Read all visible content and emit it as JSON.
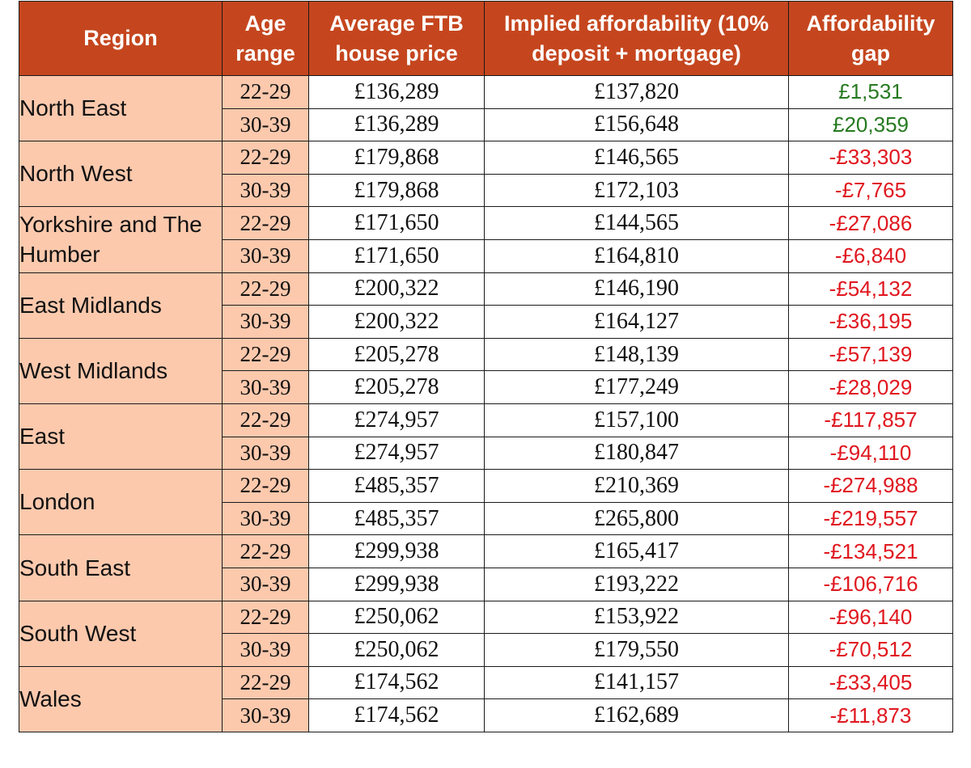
{
  "header": {
    "region": "Region",
    "age_range": "Age range",
    "avg_price": "Average FTB house price",
    "implied": "Implied affordability (10% deposit + mortgage)",
    "gap": "Affordability gap"
  },
  "colors": {
    "header_bg": "#c5461e",
    "label_bg": "#fcc9ad",
    "positive": "#267a1f",
    "negative": "#e0171f"
  },
  "regions": [
    {
      "name": "North East",
      "rows": [
        {
          "age": "22-29",
          "price": "£136,289",
          "implied": "£137,820",
          "gap": "£1,531"
        },
        {
          "age": "30-39",
          "price": "£136,289",
          "implied": "£156,648",
          "gap": "£20,359"
        }
      ]
    },
    {
      "name": "North West",
      "rows": [
        {
          "age": "22-29",
          "price": "£179,868",
          "implied": "£146,565",
          "gap": "-£33,303"
        },
        {
          "age": "30-39",
          "price": "£179,868",
          "implied": "£172,103",
          "gap": "-£7,765"
        }
      ]
    },
    {
      "name": "Yorkshire and The Humber",
      "rows": [
        {
          "age": "22-29",
          "price": "£171,650",
          "implied": "£144,565",
          "gap": "-£27,086"
        },
        {
          "age": "30-39",
          "price": "£171,650",
          "implied": "£164,810",
          "gap": "-£6,840"
        }
      ]
    },
    {
      "name": "East Midlands",
      "rows": [
        {
          "age": "22-29",
          "price": "£200,322",
          "implied": "£146,190",
          "gap": "-£54,132"
        },
        {
          "age": "30-39",
          "price": "£200,322",
          "implied": "£164,127",
          "gap": "-£36,195"
        }
      ]
    },
    {
      "name": "West Midlands",
      "rows": [
        {
          "age": "22-29",
          "price": "£205,278",
          "implied": "£148,139",
          "gap": "-£57,139"
        },
        {
          "age": "30-39",
          "price": "£205,278",
          "implied": "£177,249",
          "gap": "-£28,029"
        }
      ]
    },
    {
      "name": "East",
      "rows": [
        {
          "age": "22-29",
          "price": "£274,957",
          "implied": "£157,100",
          "gap": "-£117,857"
        },
        {
          "age": "30-39",
          "price": "£274,957",
          "implied": "£180,847",
          "gap": "-£94,110"
        }
      ]
    },
    {
      "name": "London",
      "rows": [
        {
          "age": "22-29",
          "price": "£485,357",
          "implied": "£210,369",
          "gap": "-£274,988"
        },
        {
          "age": "30-39",
          "price": "£485,357",
          "implied": "£265,800",
          "gap": "-£219,557"
        }
      ]
    },
    {
      "name": "South East",
      "rows": [
        {
          "age": "22-29",
          "price": "£299,938",
          "implied": "£165,417",
          "gap": "-£134,521"
        },
        {
          "age": "30-39",
          "price": "£299,938",
          "implied": "£193,222",
          "gap": "-£106,716"
        }
      ]
    },
    {
      "name": "South West",
      "rows": [
        {
          "age": "22-29",
          "price": "£250,062",
          "implied": "£153,922",
          "gap": "-£96,140"
        },
        {
          "age": "30-39",
          "price": "£250,062",
          "implied": "£179,550",
          "gap": "-£70,512"
        }
      ]
    },
    {
      "name": "Wales",
      "rows": [
        {
          "age": "22-29",
          "price": "£174,562",
          "implied": "£141,157",
          "gap": "-£33,405"
        },
        {
          "age": "30-39",
          "price": "£174,562",
          "implied": "£162,689",
          "gap": "-£11,873"
        }
      ]
    }
  ]
}
